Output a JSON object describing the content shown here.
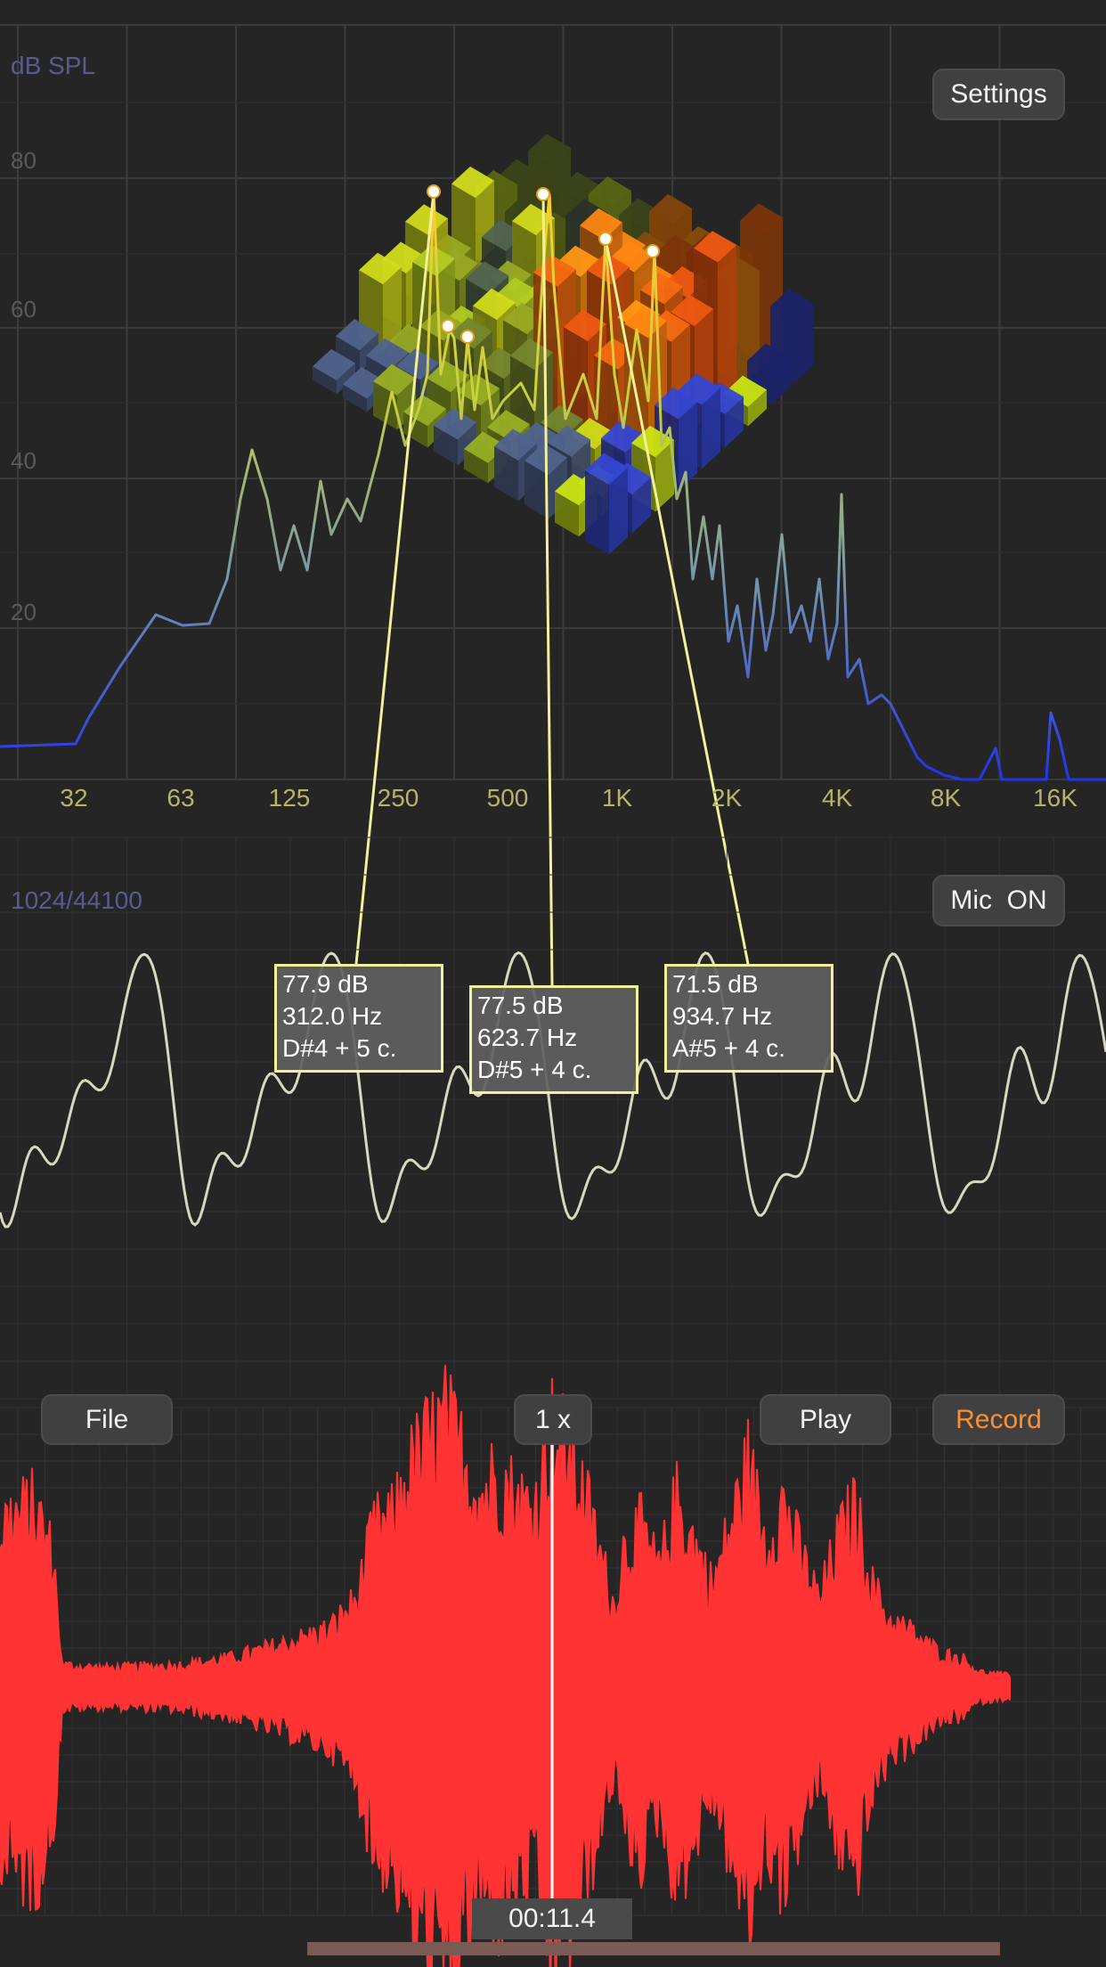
{
  "spectrum": {
    "unit_label": "dB SPL",
    "y_ticks": [
      "80",
      "60",
      "40",
      "20"
    ],
    "x_ticks": [
      "32",
      "63",
      "125",
      "250",
      "500",
      "1K",
      "2K",
      "4K",
      "8K",
      "16K"
    ],
    "settings_label": "Settings"
  },
  "oscilloscope": {
    "info_label": "1024/44100",
    "mic_label": "Mic  ON"
  },
  "annotations": [
    {
      "db": "77.9 dB",
      "hz": "312.0 Hz",
      "note": "D#4 + 5 c."
    },
    {
      "db": "77.5 dB",
      "hz": "623.7 Hz",
      "note": "D#5 + 4 c."
    },
    {
      "db": "71.5 dB",
      "hz": "934.7 Hz",
      "note": "A#5 + 4 c."
    }
  ],
  "recorder": {
    "file_label": "File",
    "speed_label": "1 x",
    "play_label": "Play",
    "record_label": "Record",
    "time": "00:11.4"
  },
  "colors": {
    "background": "#252525",
    "grid": "#3a3a3a",
    "waveform": "#ff3333",
    "scope_line": "#d8d8c0",
    "record_text": "#ff8f2e",
    "annotation_border": "#f2f09a",
    "tick_label": "#b6b468"
  }
}
